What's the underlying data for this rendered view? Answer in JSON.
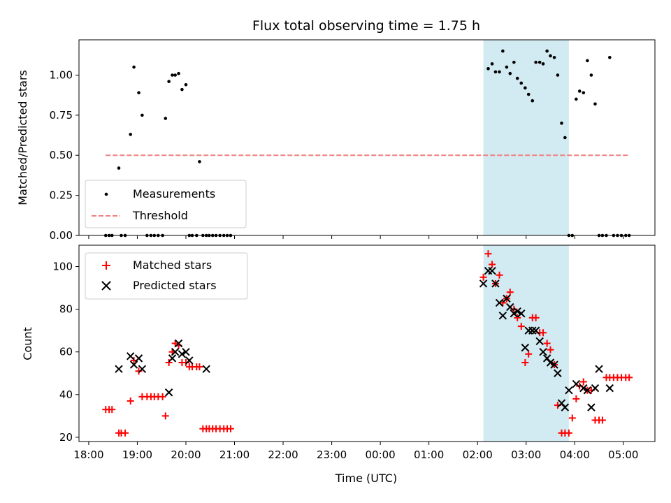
{
  "chart_data": [
    {
      "type": "scatter",
      "title": "Flux total observing time = 1.75 h",
      "xlabel": "",
      "ylabel": "Matched/Predicted stars",
      "xlim": [
        17.8,
        29.65
      ],
      "ylim": [
        0,
        1.22
      ],
      "yticks": [
        0.0,
        0.25,
        0.5,
        0.75,
        1.0
      ],
      "ytick_labels": [
        "0.00",
        "0.25",
        "0.50",
        "0.75",
        "1.00"
      ],
      "shaded_region": {
        "x": [
          26.12,
          27.88
        ],
        "color": "#add8e6"
      },
      "legend": {
        "location": "lower left",
        "entries": [
          "Measurements",
          "Threshold"
        ]
      },
      "series": [
        {
          "name": "Measurements",
          "marker": "dot",
          "color": "#000000",
          "x": [
            18.35,
            18.42,
            18.48,
            18.62,
            18.67,
            18.75,
            18.86,
            18.93,
            19.03,
            19.1,
            19.2,
            19.28,
            19.35,
            19.43,
            19.52,
            19.58,
            19.65,
            19.72,
            19.78,
            19.85,
            19.92,
            20.0,
            20.07,
            20.13,
            20.22,
            20.28,
            20.35,
            20.42,
            20.48,
            20.55,
            20.62,
            20.7,
            20.78,
            20.85,
            20.92,
            26.22,
            26.3,
            26.37,
            26.45,
            26.52,
            26.6,
            26.67,
            26.75,
            26.82,
            26.9,
            26.98,
            27.05,
            27.13,
            27.2,
            27.28,
            27.35,
            27.43,
            27.5,
            27.58,
            27.65,
            27.73,
            27.8,
            27.88,
            27.95,
            28.03,
            28.1,
            28.18,
            28.26,
            28.34,
            28.42,
            28.5,
            28.57,
            28.65,
            28.72,
            28.8,
            28.88,
            28.96,
            29.05,
            29.12
          ],
          "y": [
            0,
            0,
            0,
            0.42,
            0,
            0,
            0.63,
            1.05,
            0.89,
            0.75,
            0,
            0,
            0,
            0,
            0,
            0.73,
            0.96,
            1.0,
            1.0,
            1.01,
            0.91,
            0.94,
            0,
            0,
            0,
            0.46,
            0,
            0,
            0,
            0,
            0,
            0,
            0,
            0,
            0,
            1.04,
            1.07,
            1.02,
            1.02,
            1.15,
            1.05,
            1.01,
            1.08,
            0.98,
            0.95,
            0.92,
            0.88,
            0.84,
            1.08,
            1.08,
            1.07,
            1.15,
            1.12,
            1.11,
            1.0,
            0.7,
            0.61,
            0,
            0,
            0.85,
            0.9,
            0.89,
            1.09,
            1.0,
            0.82,
            0,
            0,
            0,
            1.11,
            0,
            0,
            0,
            0,
            0
          ]
        },
        {
          "name": "Threshold",
          "style": "dashed",
          "color": "#f08080",
          "x": [
            18.35,
            29.12
          ],
          "y": [
            0.5,
            0.5
          ]
        }
      ]
    },
    {
      "type": "scatter",
      "title": "",
      "xlabel": "Time (UTC)",
      "ylabel": "Count",
      "xlim": [
        17.8,
        29.65
      ],
      "ylim": [
        18,
        110
      ],
      "yticks": [
        20,
        40,
        60,
        80,
        100
      ],
      "xticks": [
        18,
        19,
        20,
        21,
        22,
        23,
        24,
        25,
        26,
        27,
        28,
        29
      ],
      "xtick_labels": [
        "18:00",
        "19:00",
        "20:00",
        "21:00",
        "22:00",
        "23:00",
        "00:00",
        "01:00",
        "02:00",
        "03:00",
        "04:00",
        "05:00"
      ],
      "shaded_region": {
        "x": [
          26.12,
          27.88
        ],
        "color": "#add8e6"
      },
      "legend": {
        "location": "upper left",
        "entries": [
          "Matched stars",
          "Predicted stars"
        ]
      },
      "series": [
        {
          "name": "Matched stars",
          "marker": "plus",
          "color": "#ff0000",
          "x": [
            18.35,
            18.42,
            18.48,
            18.62,
            18.67,
            18.75,
            18.86,
            18.93,
            19.03,
            19.1,
            19.2,
            19.28,
            19.35,
            19.43,
            19.52,
            19.58,
            19.65,
            19.72,
            19.78,
            19.85,
            19.92,
            20.0,
            20.07,
            20.13,
            20.22,
            20.28,
            20.35,
            20.42,
            20.48,
            20.55,
            20.62,
            20.7,
            20.78,
            20.85,
            20.92,
            26.12,
            26.22,
            26.3,
            26.37,
            26.45,
            26.52,
            26.6,
            26.67,
            26.75,
            26.82,
            26.9,
            26.98,
            27.05,
            27.13,
            27.2,
            27.28,
            27.35,
            27.43,
            27.5,
            27.58,
            27.65,
            27.73,
            27.8,
            27.88,
            27.95,
            28.03,
            28.1,
            28.18,
            28.26,
            28.34,
            28.42,
            28.5,
            28.57,
            28.65,
            28.72,
            28.8,
            28.88,
            28.96,
            29.05,
            29.12
          ],
          "y": [
            33,
            33,
            33,
            22,
            22,
            22,
            37,
            56,
            51,
            39,
            39,
            39,
            39,
            39,
            39,
            30,
            55,
            60,
            64,
            63,
            55,
            55,
            53,
            53,
            53,
            53,
            24,
            24,
            24,
            24,
            24,
            24,
            24,
            24,
            24,
            95,
            106,
            101,
            92,
            96,
            83,
            85,
            88,
            80,
            76,
            72,
            55,
            59,
            76,
            76,
            69,
            69,
            64,
            61,
            54,
            35,
            22,
            22,
            22,
            29,
            38,
            44,
            46,
            42,
            42,
            28,
            28,
            28,
            48,
            48,
            48,
            48,
            48,
            48,
            48
          ]
        },
        {
          "name": "Predicted stars",
          "marker": "x",
          "color": "#000000",
          "x": [
            18.62,
            18.86,
            18.93,
            19.03,
            19.1,
            19.65,
            19.72,
            19.78,
            19.85,
            19.92,
            20.0,
            20.07,
            20.42,
            26.12,
            26.22,
            26.3,
            26.37,
            26.45,
            26.52,
            26.6,
            26.67,
            26.75,
            26.82,
            26.9,
            26.98,
            27.05,
            27.13,
            27.2,
            27.28,
            27.35,
            27.43,
            27.5,
            27.58,
            27.65,
            27.73,
            27.8,
            27.88,
            28.03,
            28.18,
            28.26,
            28.34,
            28.42,
            28.5,
            28.72
          ],
          "y": [
            52,
            58,
            54,
            57,
            52,
            41,
            57,
            60,
            64,
            59,
            60,
            56,
            52,
            92,
            98,
            98,
            92,
            83,
            77,
            85,
            81,
            78,
            79,
            78,
            62,
            70,
            70,
            70,
            65,
            60,
            57,
            55,
            54,
            50,
            36,
            34,
            42,
            45,
            43,
            42,
            34,
            43,
            52,
            43
          ]
        }
      ]
    }
  ]
}
